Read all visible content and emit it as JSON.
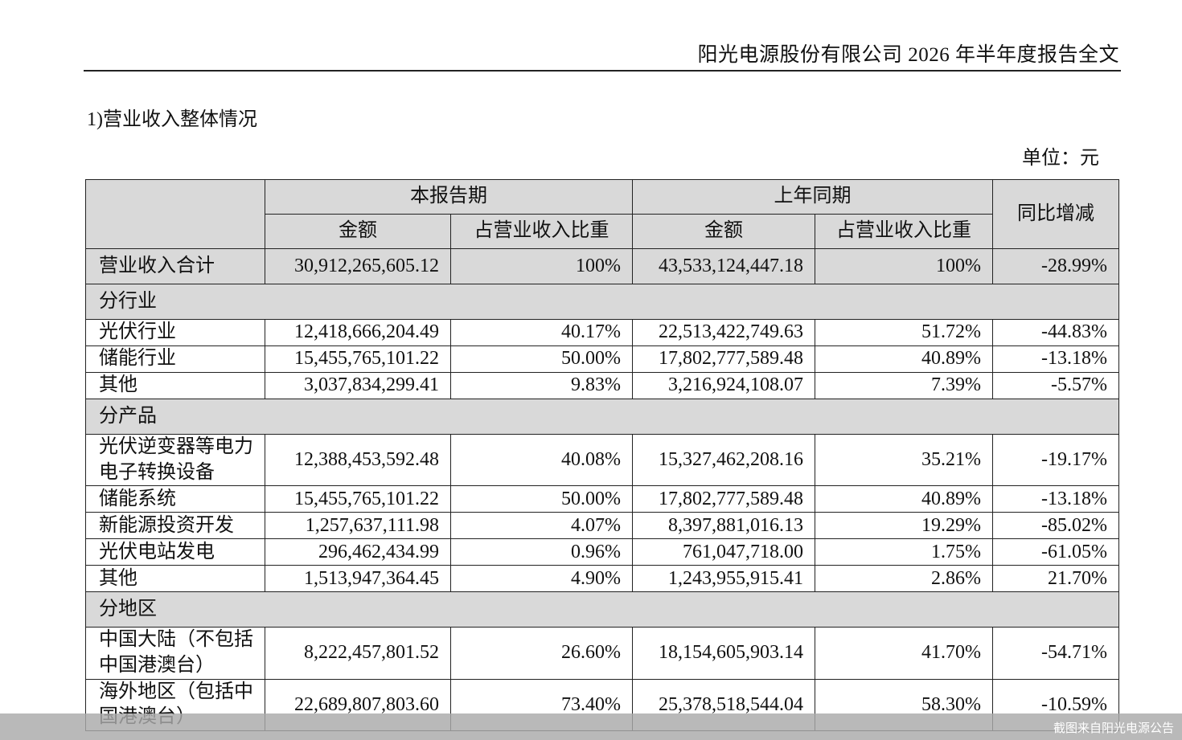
{
  "header": {
    "title": "阳光电源股份有限公司 2026 年半年度报告全文"
  },
  "section": {
    "title": "1)营业收入整体情况",
    "unit": "单位：元"
  },
  "table": {
    "groups": {
      "current": "本报告期",
      "prior": "上年同期",
      "change": "同比增减"
    },
    "subheaders": {
      "amount": "金额",
      "share": "占营业收入比重"
    },
    "total": {
      "label": "营业收入合计",
      "cur_amount": "30,912,265,605.12",
      "cur_share": "100%",
      "prev_amount": "43,533,124,447.18",
      "prev_share": "100%",
      "change": "-28.99%"
    },
    "by_industry": {
      "title": "分行业",
      "rows": [
        {
          "label": "光伏行业",
          "cur_amount": "12,418,666,204.49",
          "cur_share": "40.17%",
          "prev_amount": "22,513,422,749.63",
          "prev_share": "51.72%",
          "change": "-44.83%"
        },
        {
          "label": "储能行业",
          "cur_amount": "15,455,765,101.22",
          "cur_share": "50.00%",
          "prev_amount": "17,802,777,589.48",
          "prev_share": "40.89%",
          "change": "-13.18%"
        },
        {
          "label": "其他",
          "cur_amount": "3,037,834,299.41",
          "cur_share": "9.83%",
          "prev_amount": "3,216,924,108.07",
          "prev_share": "7.39%",
          "change": "-5.57%"
        }
      ]
    },
    "by_product": {
      "title": "分产品",
      "rows": [
        {
          "label": "光伏逆变器等电力电子转换设备",
          "cur_amount": "12,388,453,592.48",
          "cur_share": "40.08%",
          "prev_amount": "15,327,462,208.16",
          "prev_share": "35.21%",
          "change": "-19.17%"
        },
        {
          "label": "储能系统",
          "cur_amount": "15,455,765,101.22",
          "cur_share": "50.00%",
          "prev_amount": "17,802,777,589.48",
          "prev_share": "40.89%",
          "change": "-13.18%"
        },
        {
          "label": "新能源投资开发",
          "cur_amount": "1,257,637,111.98",
          "cur_share": "4.07%",
          "prev_amount": "8,397,881,016.13",
          "prev_share": "19.29%",
          "change": "-85.02%"
        },
        {
          "label": "光伏电站发电",
          "cur_amount": "296,462,434.99",
          "cur_share": "0.96%",
          "prev_amount": "761,047,718.00",
          "prev_share": "1.75%",
          "change": "-61.05%"
        },
        {
          "label": "其他",
          "cur_amount": "1,513,947,364.45",
          "cur_share": "4.90%",
          "prev_amount": "1,243,955,915.41",
          "prev_share": "2.86%",
          "change": "21.70%"
        }
      ]
    },
    "by_region": {
      "title": "分地区",
      "rows": [
        {
          "label": "中国大陆（不包括中国港澳台）",
          "cur_amount": "8,222,457,801.52",
          "cur_share": "26.60%",
          "prev_amount": "18,154,605,903.14",
          "prev_share": "41.70%",
          "change": "-54.71%"
        },
        {
          "label": "海外地区（包括中国港澳台）",
          "cur_amount": "22,689,807,803.60",
          "cur_share": "73.40%",
          "prev_amount": "25,378,518,544.04",
          "prev_share": "58.30%",
          "change": "-10.59%"
        }
      ]
    }
  },
  "footer": {
    "caption": "截图来自阳光电源公告"
  }
}
